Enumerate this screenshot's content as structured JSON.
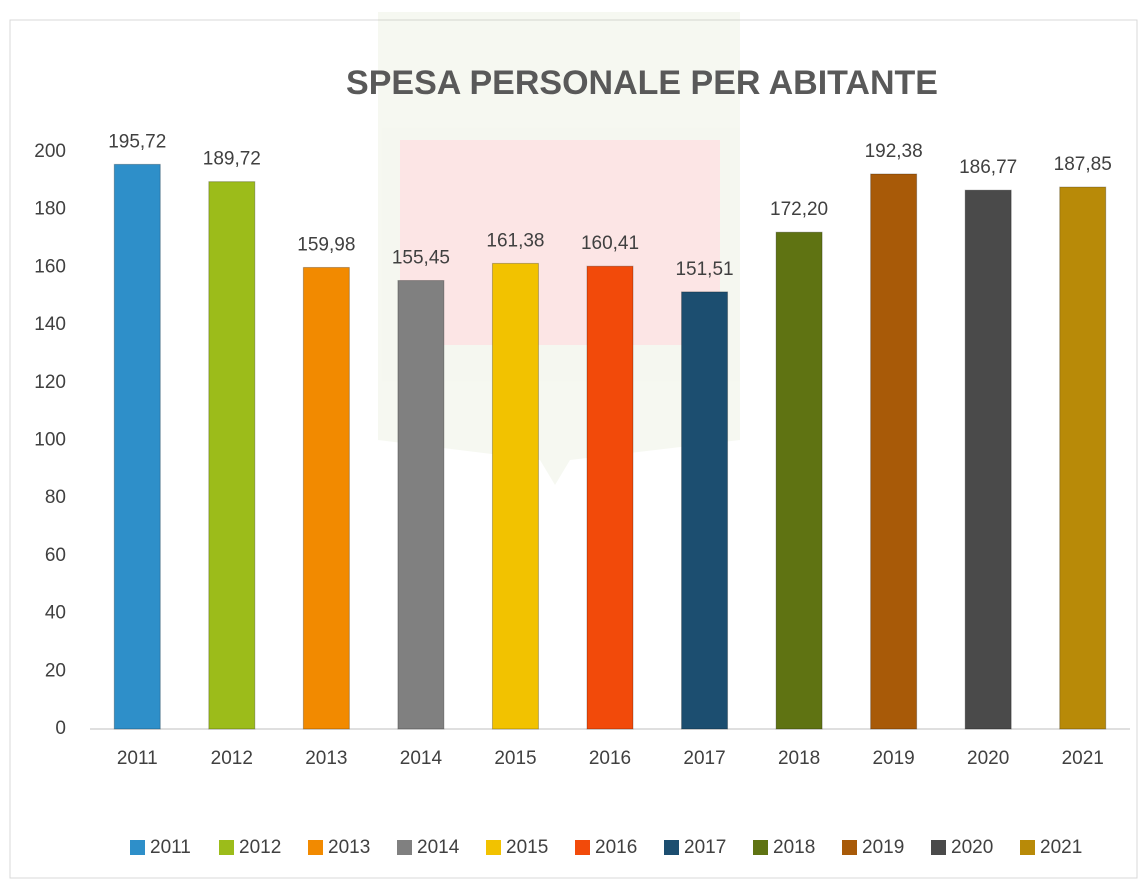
{
  "chart_data": {
    "type": "bar",
    "title": "SPESA PERSONALE PER ABITANTE",
    "categories": [
      "2011",
      "2012",
      "2013",
      "2014",
      "2015",
      "2016",
      "2017",
      "2018",
      "2019",
      "2020",
      "2021"
    ],
    "values": [
      195.72,
      189.72,
      159.98,
      155.45,
      161.38,
      160.41,
      151.51,
      172.2,
      192.38,
      186.77,
      187.85
    ],
    "value_labels": [
      "195,72",
      "189,72",
      "159,98",
      "155,45",
      "161,38",
      "160,41",
      "151,51",
      "172,20",
      "192,38",
      "186,77",
      "187,85"
    ],
    "colors": [
      "#2e8fc9",
      "#9cbc1a",
      "#f28a00",
      "#808080",
      "#f2c200",
      "#f24a0a",
      "#1c4e70",
      "#5f7312",
      "#a85a08",
      "#4a4a4a",
      "#b88a08"
    ],
    "ylim": [
      0,
      200
    ],
    "yticks": [
      0,
      20,
      40,
      60,
      80,
      100,
      120,
      140,
      160,
      180,
      200
    ],
    "grid": false,
    "legend": "bottom"
  }
}
